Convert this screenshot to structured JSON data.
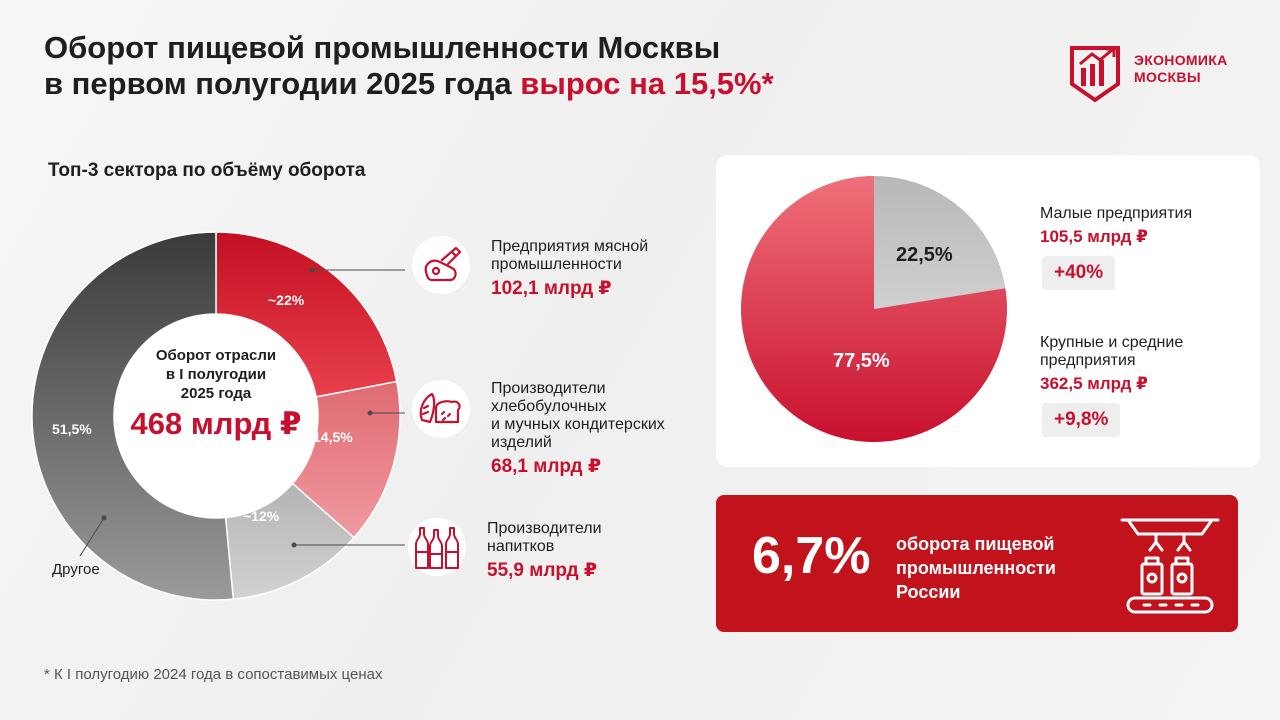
{
  "header": {
    "title_line1": "Оборот пищевой промышленности Москвы",
    "title_line2_prefix": "в первом полугодии 2025 года ",
    "title_line2_highlight": "вырос на 15,5%*"
  },
  "logo": {
    "line1": "ЭКОНОМИКА",
    "line2": "МОСКВЫ"
  },
  "sectors": {
    "subtitle": "Топ-3 сектора по объёму оборота",
    "center_line1": "Оборот отрасли",
    "center_line2": "в I полугодии",
    "center_line3": "2025 года",
    "center_value": "468 млрд ₽",
    "other_label": "Другое",
    "items": [
      {
        "name_lines": [
          "Предприятия мясной",
          "промышленности"
        ],
        "value": "102,1 млрд ₽",
        "icon": "meat-icon"
      },
      {
        "name_lines": [
          "Производители",
          "хлебобулочных",
          "и мучных кондитерских",
          "изделий"
        ],
        "value": "68,1 млрд ₽",
        "icon": "bread-icon"
      },
      {
        "name_lines": [
          "Производители",
          "напитков"
        ],
        "value": "55,9 млрд ₽",
        "icon": "bottles-icon"
      }
    ]
  },
  "enterprise": {
    "small": {
      "name": "Малые предприятия",
      "value": "105,5 млрд ₽",
      "growth": "+40%"
    },
    "large": {
      "name_lines": [
        "Крупные и средние",
        "предприятия"
      ],
      "value": "362,5 млрд ₽",
      "growth": "+9,8%"
    }
  },
  "share": {
    "value": "6,7%",
    "text_lines": [
      "оборота пищевой",
      "промышленности",
      "России"
    ],
    "icon": "factory-conveyor-icon"
  },
  "footnote": "* К I полугодию 2024 года в сопоставимых ценах",
  "colors": {
    "accent": "#c8102e",
    "meat": "#d3202c",
    "bread": "#e57a80",
    "drinks": "#c4c4c4",
    "other": "#6a6a6a",
    "pie_small": "#bfbfbf",
    "pie_large": "#e8404c"
  },
  "chart_data": [
    {
      "type": "pie",
      "categories": [
        "Предприятия мясной промышленности",
        "Производители хлебобулочных и мучных кондитерских изделий",
        "Производители напитков",
        "Другое"
      ],
      "values": [
        22,
        14.5,
        12,
        51.5
      ],
      "labels": [
        "~22%",
        "14,5%",
        "~12%",
        "51,5%"
      ],
      "donut": true
    },
    {
      "type": "pie",
      "categories": [
        "Малые предприятия",
        "Крупные и средние предприятия"
      ],
      "values": [
        22.5,
        77.5
      ],
      "labels": [
        "22,5%",
        "77,5%"
      ]
    }
  ]
}
